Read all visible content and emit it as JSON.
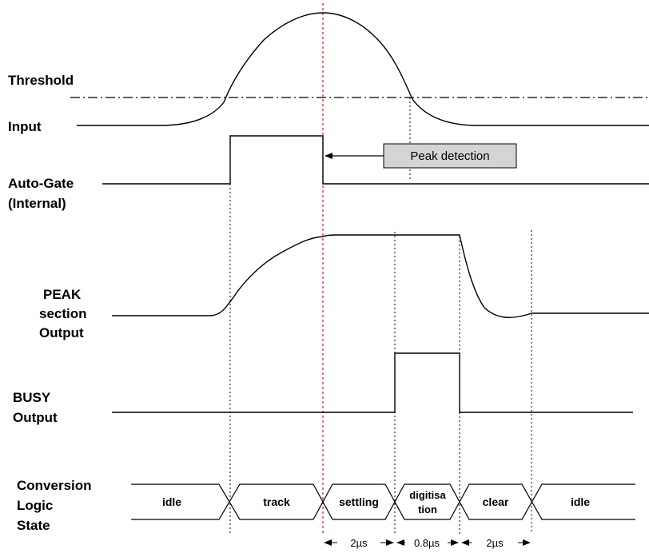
{
  "signals": {
    "threshold": "Threshold",
    "input": "Input",
    "auto_gate_1": "Auto-Gate",
    "auto_gate_2": "(Internal)",
    "peak_1": "PEAK",
    "peak_2": "section",
    "peak_3": "Output",
    "busy_1": "BUSY",
    "busy_2": "Output",
    "conv_1": "Conversion",
    "conv_2": "Logic",
    "conv_3": "State"
  },
  "callout": {
    "text": "Peak detection"
  },
  "states": {
    "idle_1": "idle",
    "track": "track",
    "settling": "settling",
    "digitisation_1": "digitisa",
    "digitisation_2": "tion",
    "clear": "clear",
    "idle_2": "idle"
  },
  "timing": {
    "t1": "2µs",
    "t2": "0.8µs",
    "t3": "2µs"
  },
  "colors": {
    "callout_fill": "#d4d4d4",
    "peak_marker": "#e0141e"
  }
}
